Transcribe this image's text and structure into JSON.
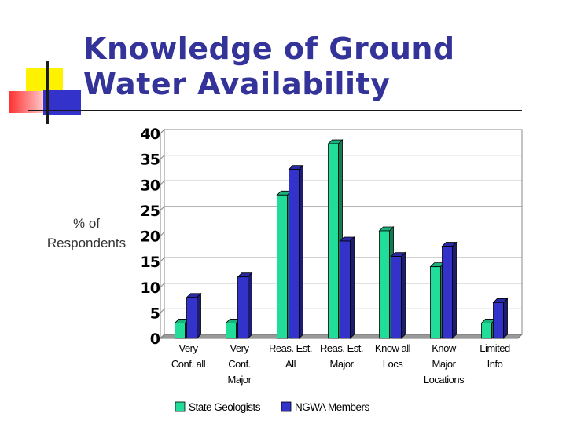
{
  "title": {
    "line1": "Knowledge of Ground",
    "line2": "Water Availability"
  },
  "colors": {
    "title": "#333399",
    "state_geologists": "#22dd99",
    "ngwa_members": "#3333cc"
  },
  "chart_data": {
    "type": "bar",
    "title": "Knowledge of Ground Water Availability",
    "ylabel": "% of Respondents",
    "ylabel_lines": [
      "% of",
      "Respondents"
    ],
    "xlabel": "",
    "ylim": [
      0,
      40
    ],
    "yticks": [
      0,
      5,
      10,
      15,
      20,
      25,
      30,
      35,
      40
    ],
    "grid": true,
    "legend_position": "bottom",
    "categories": [
      [
        "Very",
        "Conf. all"
      ],
      [
        "Very",
        "Conf.",
        "Major"
      ],
      [
        "Reas. Est.",
        "All"
      ],
      [
        "Reas. Est.",
        "Major"
      ],
      [
        "Know all",
        "Locs"
      ],
      [
        "Know",
        "Major",
        "Locations"
      ],
      [
        "Limited",
        "Info"
      ]
    ],
    "series": [
      {
        "name": "State Geologists",
        "color": "#22dd99",
        "values": [
          3,
          3,
          28,
          38,
          21,
          14,
          3
        ]
      },
      {
        "name": "NGWA Members",
        "color": "#3333cc",
        "values": [
          8,
          12,
          33,
          19,
          16,
          18,
          7
        ]
      }
    ]
  }
}
